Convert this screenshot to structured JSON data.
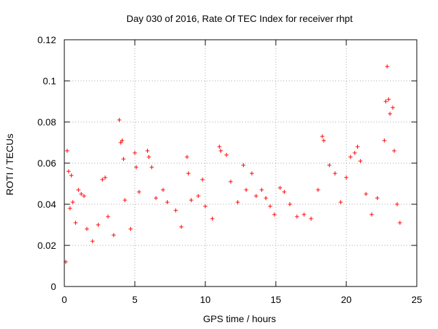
{
  "chart_data": {
    "type": "scatter",
    "title": "Day 030 of 2016, Rate Of TEC Index for receiver rhpt",
    "xlabel": "GPS time / hours",
    "ylabel": "ROTI / TECUs",
    "xlim": [
      0,
      25
    ],
    "ylim": [
      0,
      0.12
    ],
    "x_ticks": [
      "0",
      "5",
      "10",
      "15",
      "20",
      "25"
    ],
    "y_ticks": [
      "0",
      "0.02",
      "0.04",
      "0.06",
      "0.08",
      "0.1",
      "0.12"
    ],
    "grid": true,
    "marker": "+",
    "color": "#ff0000",
    "series": [
      {
        "name": "ROTI",
        "points": [
          [
            0.1,
            0.012
          ],
          [
            0.2,
            0.066
          ],
          [
            0.3,
            0.056
          ],
          [
            0.4,
            0.038
          ],
          [
            0.5,
            0.054
          ],
          [
            0.6,
            0.041
          ],
          [
            0.8,
            0.031
          ],
          [
            1.0,
            0.047
          ],
          [
            1.2,
            0.045
          ],
          [
            1.4,
            0.044
          ],
          [
            1.6,
            0.028
          ],
          [
            2.0,
            0.022
          ],
          [
            2.4,
            0.03
          ],
          [
            2.7,
            0.052
          ],
          [
            2.9,
            0.053
          ],
          [
            3.1,
            0.034
          ],
          [
            3.5,
            0.025
          ],
          [
            3.9,
            0.081
          ],
          [
            4.0,
            0.07
          ],
          [
            4.1,
            0.071
          ],
          [
            4.2,
            0.062
          ],
          [
            4.3,
            0.042
          ],
          [
            4.7,
            0.028
          ],
          [
            5.0,
            0.065
          ],
          [
            5.1,
            0.058
          ],
          [
            5.3,
            0.046
          ],
          [
            5.9,
            0.066
          ],
          [
            6.0,
            0.063
          ],
          [
            6.2,
            0.058
          ],
          [
            6.5,
            0.043
          ],
          [
            7.0,
            0.047
          ],
          [
            7.3,
            0.041
          ],
          [
            7.9,
            0.037
          ],
          [
            8.3,
            0.029
          ],
          [
            8.7,
            0.063
          ],
          [
            8.8,
            0.055
          ],
          [
            9.0,
            0.042
          ],
          [
            9.5,
            0.044
          ],
          [
            9.8,
            0.052
          ],
          [
            10.0,
            0.039
          ],
          [
            10.5,
            0.033
          ],
          [
            11.0,
            0.068
          ],
          [
            11.1,
            0.066
          ],
          [
            11.5,
            0.064
          ],
          [
            11.8,
            0.051
          ],
          [
            12.3,
            0.041
          ],
          [
            12.7,
            0.059
          ],
          [
            12.9,
            0.047
          ],
          [
            13.3,
            0.055
          ],
          [
            13.6,
            0.044
          ],
          [
            14.0,
            0.047
          ],
          [
            14.3,
            0.043
          ],
          [
            14.6,
            0.039
          ],
          [
            14.9,
            0.035
          ],
          [
            15.3,
            0.048
          ],
          [
            15.6,
            0.046
          ],
          [
            16.0,
            0.04
          ],
          [
            16.5,
            0.034
          ],
          [
            17.0,
            0.035
          ],
          [
            17.5,
            0.033
          ],
          [
            18.0,
            0.047
          ],
          [
            18.3,
            0.073
          ],
          [
            18.4,
            0.071
          ],
          [
            18.8,
            0.059
          ],
          [
            19.2,
            0.055
          ],
          [
            19.6,
            0.041
          ],
          [
            20.0,
            0.053
          ],
          [
            20.3,
            0.063
          ],
          [
            20.6,
            0.065
          ],
          [
            20.8,
            0.068
          ],
          [
            21.0,
            0.061
          ],
          [
            21.4,
            0.045
          ],
          [
            21.8,
            0.035
          ],
          [
            22.2,
            0.043
          ],
          [
            22.7,
            0.071
          ],
          [
            22.8,
            0.09
          ],
          [
            22.9,
            0.107
          ],
          [
            23.0,
            0.091
          ],
          [
            23.1,
            0.084
          ],
          [
            23.3,
            0.087
          ],
          [
            23.4,
            0.066
          ],
          [
            23.6,
            0.04
          ],
          [
            23.8,
            0.031
          ]
        ]
      }
    ]
  }
}
